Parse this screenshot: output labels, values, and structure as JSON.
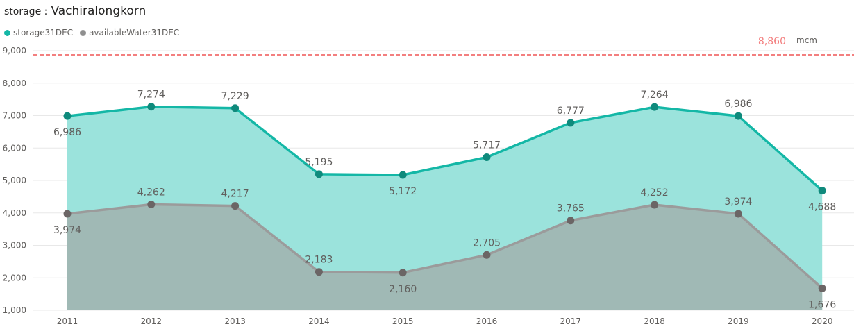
{
  "header": {
    "label": "storage :",
    "value": "Vachiralongkorn"
  },
  "colors": {
    "storage_line": "#14b7a6",
    "storage_fill": "#9be3dc",
    "storage_marker": "#0f8a7c",
    "available_line": "#9b9b9b",
    "available_fill": "#a0b9b5",
    "available_marker": "#6b6565",
    "reference": "#f37f7f",
    "grid": "#e8e8e8"
  },
  "chart_data": {
    "type": "area",
    "x": [
      "2011",
      "2012",
      "2013",
      "2014",
      "2015",
      "2016",
      "2017",
      "2018",
      "2019",
      "2020"
    ],
    "series": [
      {
        "name": "storage31DEC",
        "values": [
          6986,
          7274,
          7229,
          5195,
          5172,
          5717,
          6777,
          7264,
          6986,
          4688
        ],
        "labels": [
          "6,986",
          "7,274",
          "7,229",
          "5,195",
          "5,172",
          "5,717",
          "6,777",
          "7,264",
          "6,986",
          "4,688"
        ]
      },
      {
        "name": "availableWater31DEC",
        "values": [
          3974,
          4262,
          4217,
          2183,
          2160,
          2705,
          3765,
          4252,
          3974,
          1676
        ],
        "labels": [
          "3,974",
          "4,262",
          "4,217",
          "2,183",
          "2,160",
          "2,705",
          "3,765",
          "4,252",
          "3,974",
          "1,676"
        ]
      }
    ],
    "ylim": [
      1000,
      9000
    ],
    "yticks": [
      "1,000",
      "2,000",
      "3,000",
      "4,000",
      "5,000",
      "6,000",
      "7,000",
      "8,000",
      "9,000"
    ],
    "reference_line": {
      "value": 8860,
      "label": "8,860",
      "unit": "mcm"
    },
    "grid": true,
    "legend_position": "top-left"
  }
}
